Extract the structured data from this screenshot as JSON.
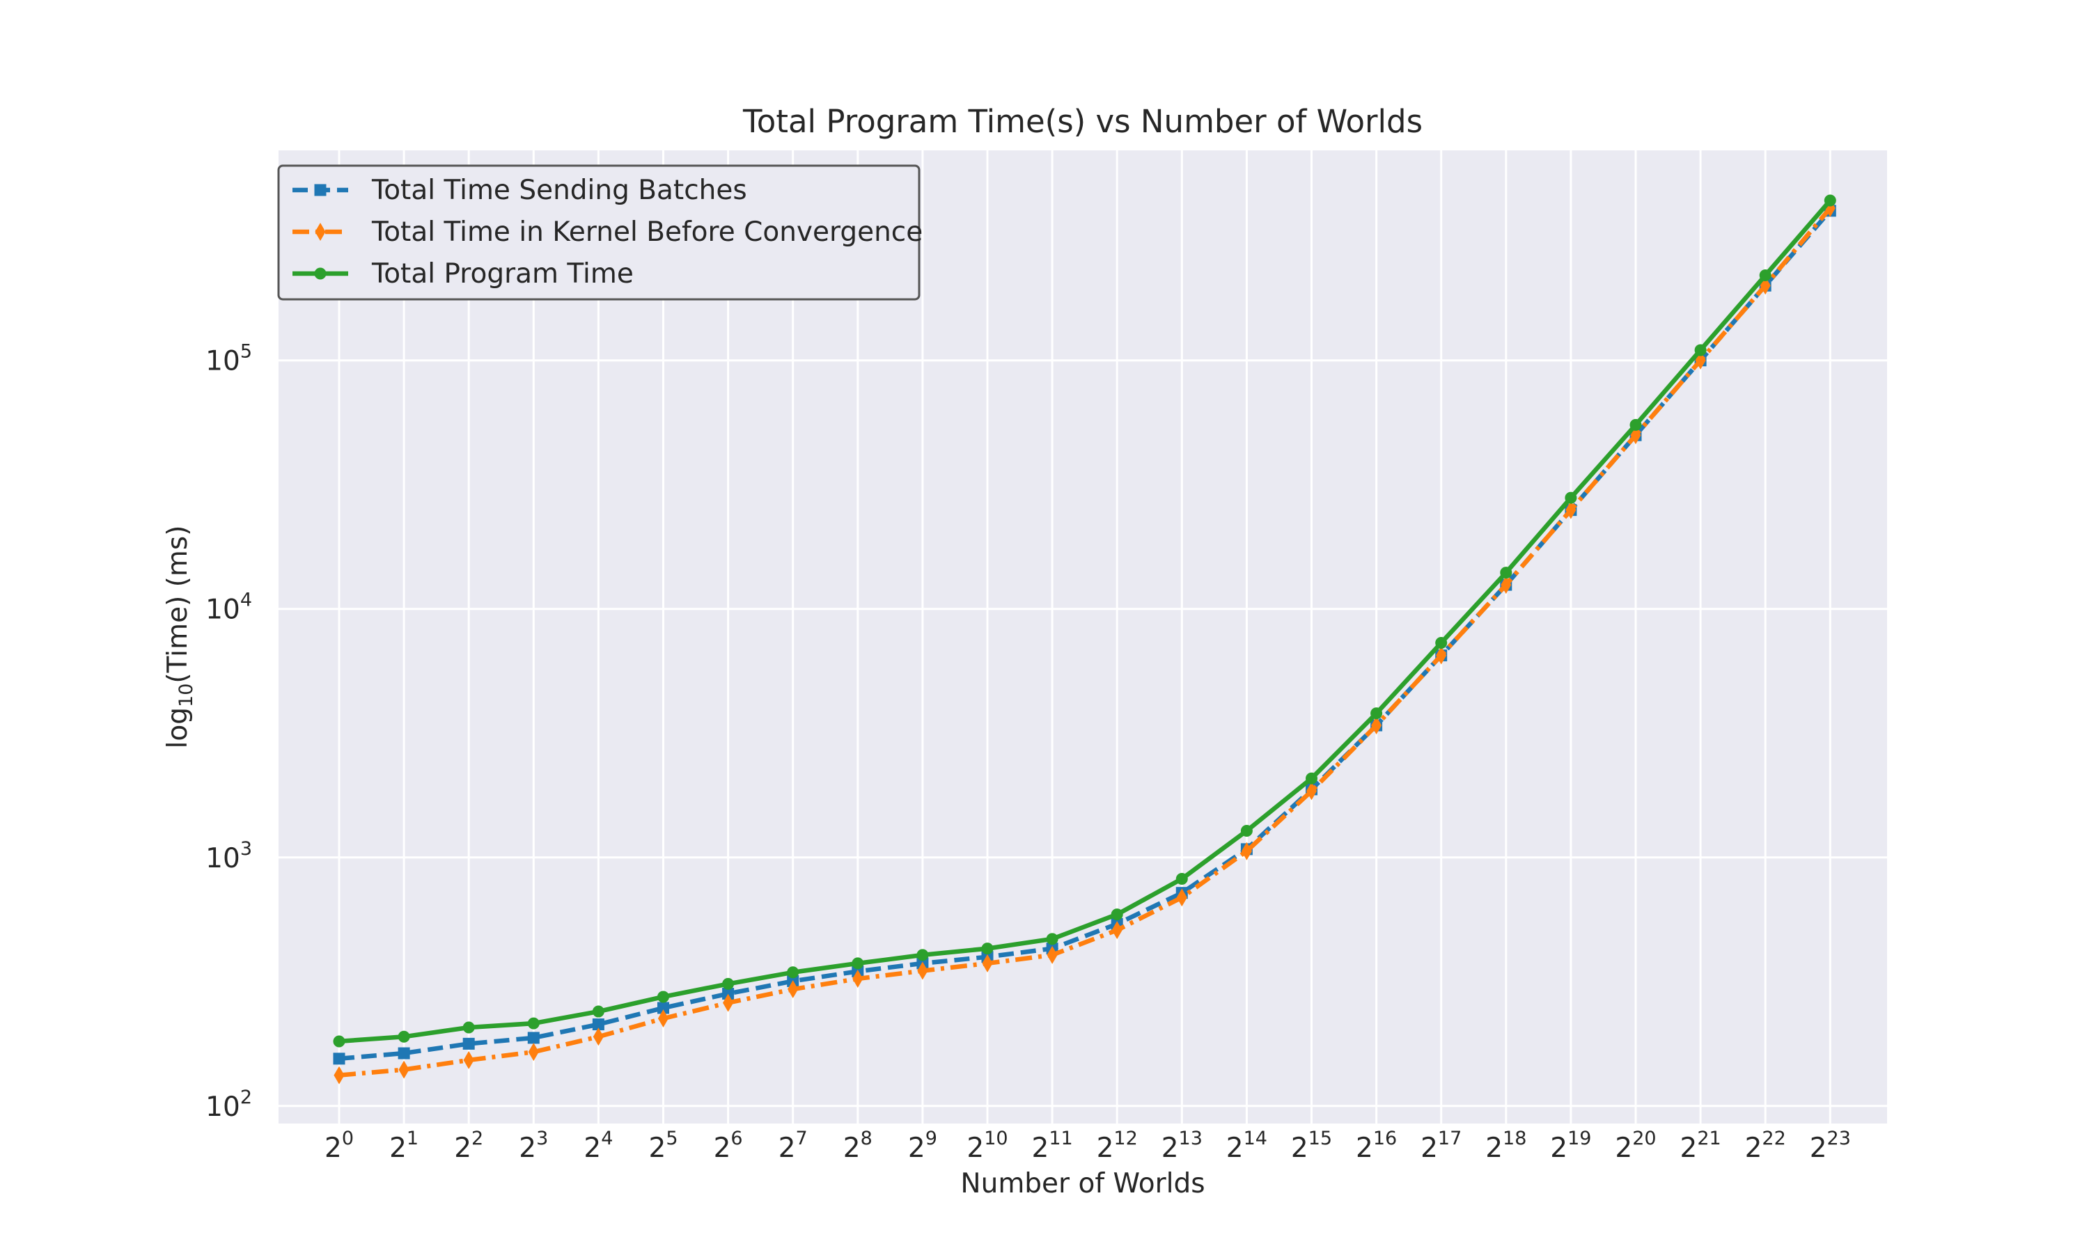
{
  "chart_data": {
    "type": "line",
    "title": "Total Program Time(s) vs Number of Worlds",
    "xlabel": "Number of Worlds",
    "ylabel": {
      "prefix": "log",
      "sub": "10",
      "suffix": "(Time) (ms)"
    },
    "y_scale": "log",
    "ylim": [
      85,
      700000
    ],
    "y_ticks": [
      {
        "base": "10",
        "exp": "2",
        "value": 100
      },
      {
        "base": "10",
        "exp": "3",
        "value": 1000
      },
      {
        "base": "10",
        "exp": "4",
        "value": 10000
      },
      {
        "base": "10",
        "exp": "5",
        "value": 100000
      }
    ],
    "x_base": "2",
    "x_exponents": [
      "0",
      "1",
      "2",
      "3",
      "4",
      "5",
      "6",
      "7",
      "8",
      "9",
      "10",
      "11",
      "12",
      "13",
      "14",
      "15",
      "16",
      "17",
      "18",
      "19",
      "20",
      "21",
      "22",
      "23"
    ],
    "grid": true,
    "legend_position": "top-left",
    "series": [
      {
        "name": "Total Time Sending Batches",
        "color": "#1f77b4",
        "line_style": "dashed",
        "marker": "square",
        "values": [
          155,
          163,
          178,
          188,
          213,
          248,
          283,
          318,
          348,
          375,
          398,
          430,
          540,
          720,
          1080,
          1880,
          3400,
          6500,
          12500,
          25000,
          50000,
          100000,
          200000,
          400000
        ]
      },
      {
        "name": "Total Time in Kernel Before Convergence",
        "color": "#ff7f0e",
        "line_style": "dashdot",
        "marker": "diamond",
        "values": [
          133,
          140,
          153,
          165,
          190,
          225,
          260,
          295,
          325,
          350,
          375,
          405,
          510,
          690,
          1060,
          1850,
          3400,
          6500,
          12500,
          25000,
          50000,
          100000,
          200000,
          410000
        ]
      },
      {
        "name": "Total Program Time",
        "color": "#2ca02c",
        "line_style": "solid",
        "marker": "circle",
        "values": [
          182,
          190,
          207,
          215,
          240,
          275,
          310,
          345,
          375,
          405,
          430,
          470,
          590,
          820,
          1280,
          2080,
          3800,
          7300,
          14000,
          28000,
          55000,
          110000,
          220000,
          440000
        ]
      }
    ]
  }
}
